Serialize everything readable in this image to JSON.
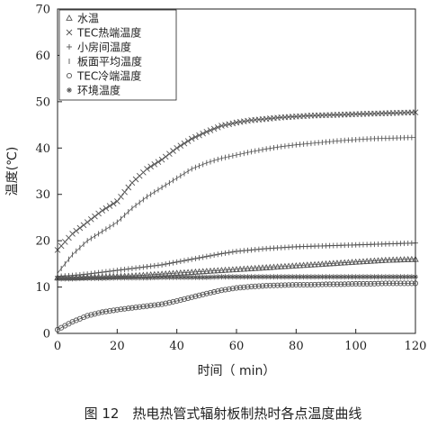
{
  "caption": "图 12　热电热管式辐射板制热时各点温度曲线",
  "chart_data": {
    "type": "line",
    "xlabel": "时间（ min）",
    "ylabel": "温度(℃)",
    "xlim": [
      0,
      120
    ],
    "ylim": [
      0,
      70
    ],
    "xticks": [
      "0",
      "20",
      "40",
      "60",
      "80",
      "100",
      "120"
    ],
    "yticks": [
      "0",
      "10",
      "20",
      "30",
      "40",
      "50",
      "60",
      "70"
    ],
    "grid": false,
    "legend_position": "top-left",
    "x": [
      0,
      5,
      10,
      15,
      20,
      25,
      30,
      35,
      40,
      45,
      50,
      55,
      60,
      65,
      70,
      75,
      80,
      85,
      90,
      95,
      100,
      105,
      110,
      115,
      120
    ],
    "series": [
      {
        "name": "水温",
        "marker": "triangle",
        "values": [
          12.0,
          12.0,
          12.1,
          12.2,
          12.3,
          12.4,
          12.6,
          12.8,
          13.0,
          13.2,
          13.4,
          13.6,
          13.8,
          14.0,
          14.2,
          14.4,
          14.6,
          14.8,
          15.0,
          15.2,
          15.4,
          15.6,
          15.8,
          15.9,
          16.0
        ]
      },
      {
        "name": "TEC热端温度",
        "marker": "cross",
        "values": [
          18.0,
          21.5,
          24.0,
          26.5,
          28.5,
          32.5,
          35.5,
          37.5,
          40.0,
          42.0,
          43.5,
          44.8,
          45.5,
          46.0,
          46.3,
          46.6,
          46.8,
          47.0,
          47.1,
          47.2,
          47.3,
          47.4,
          47.5,
          47.6,
          47.7
        ]
      },
      {
        "name": "小房间温度",
        "marker": "plus",
        "values": [
          12.3,
          12.5,
          12.8,
          13.2,
          13.6,
          14.0,
          14.4,
          14.8,
          15.4,
          16.0,
          16.6,
          17.2,
          17.7,
          18.0,
          18.3,
          18.5,
          18.7,
          18.8,
          18.9,
          19.0,
          19.1,
          19.2,
          19.3,
          19.4,
          19.5
        ]
      },
      {
        "name": "板面平均温度",
        "marker": "tick",
        "values": [
          13.0,
          17.0,
          20.0,
          22.0,
          24.0,
          27.0,
          29.5,
          31.5,
          33.5,
          35.5,
          36.8,
          37.8,
          38.5,
          39.2,
          39.8,
          40.3,
          40.7,
          41.0,
          41.3,
          41.6,
          41.8,
          42.0,
          42.1,
          42.2,
          42.3
        ]
      },
      {
        "name": "TEC冷端温度",
        "marker": "circle",
        "values": [
          0.8,
          2.5,
          3.8,
          4.6,
          5.1,
          5.5,
          5.9,
          6.3,
          7.0,
          7.8,
          8.6,
          9.3,
          9.8,
          10.1,
          10.3,
          10.4,
          10.5,
          10.5,
          10.6,
          10.6,
          10.7,
          10.7,
          10.8,
          10.8,
          10.8
        ]
      },
      {
        "name": "环境温度",
        "marker": "star",
        "values": [
          11.8,
          11.8,
          11.9,
          11.9,
          12.0,
          12.0,
          12.0,
          12.1,
          12.1,
          12.1,
          12.1,
          12.2,
          12.2,
          12.2,
          12.2,
          12.2,
          12.2,
          12.2,
          12.2,
          12.2,
          12.2,
          12.2,
          12.2,
          12.2,
          12.2
        ]
      }
    ]
  },
  "colors": {
    "stroke": "#555555",
    "axis": "#222222"
  }
}
